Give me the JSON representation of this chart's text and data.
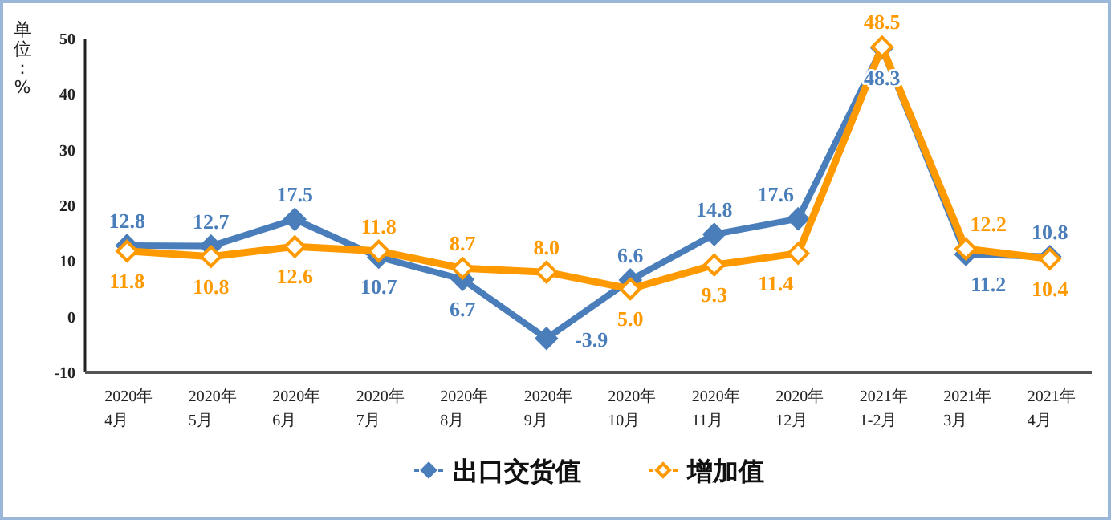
{
  "chart_data": {
    "type": "line",
    "ylabel": "单位：%",
    "categories": [
      "2020年\n4月",
      "2020年\n5月",
      "2020年\n6月",
      "2020年\n7月",
      "2020年\n8月",
      "2020年\n9月",
      "2020年\n10月",
      "2020年\n11月",
      "2020年\n12月",
      "2021年\n1-2月",
      "2021年\n3月",
      "2021年\n4月"
    ],
    "series": [
      {
        "name": "出口交货值",
        "color": "#4a7ebb",
        "values": [
          12.8,
          12.7,
          17.5,
          10.7,
          6.7,
          -3.9,
          6.6,
          14.8,
          17.6,
          48.3,
          11.2,
          10.8
        ],
        "value_labels": [
          "12.8",
          "12.7",
          "17.5",
          "10.7",
          "6.7",
          "-3.9",
          "6.6",
          "14.8",
          "17.6",
          "48.3",
          "11.2",
          "10.8"
        ]
      },
      {
        "name": "增加值",
        "color": "#ff9900",
        "values": [
          11.8,
          10.8,
          12.6,
          11.8,
          8.7,
          8.0,
          5.0,
          9.3,
          11.4,
          48.5,
          12.2,
          10.4
        ],
        "value_labels": [
          "11.8",
          "10.8",
          "12.6",
          "11.8",
          "8.7",
          "8.0",
          "5.0",
          "9.3",
          "11.4",
          "48.5",
          "12.2",
          "10.4"
        ]
      }
    ],
    "ylim": [
      -10,
      50
    ],
    "yticks": [
      -10,
      0,
      10,
      20,
      30,
      40,
      50
    ],
    "marker": "diamond",
    "line_style": "solid",
    "legend": "bottom",
    "grid": false
  }
}
